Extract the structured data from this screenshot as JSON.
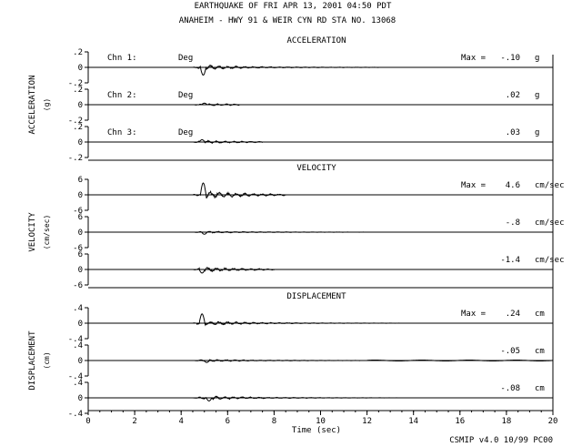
{
  "header": {
    "title": "EARTHQUAKE OF FRI APR 13, 2001   04:50 PDT",
    "station": "ANAHEIM - HWY 91 & WEIR CYN RD    STA NO. 13068"
  },
  "footer": "CSMIP v4.0 10/99  PC00",
  "chart_data": {
    "type": "line",
    "xlabel": "Time (sec)",
    "xlim": [
      0,
      20
    ],
    "x_ticks": [
      "0",
      "2",
      "4",
      "6",
      "8",
      "10",
      "12",
      "14",
      "16",
      "18",
      "20"
    ],
    "panels": [
      {
        "name": "ACCELERATION",
        "ylabel": "ACCELERATION",
        "yunit": "(g)",
        "ylim": [
          -0.2,
          0.2
        ],
        "y_ticks": [
          ".2",
          "0",
          "-.2"
        ],
        "channels": [
          {
            "label": "Chn 1:",
            "orientation": "Deg",
            "max_prefix": "Max =",
            "max": "-.10",
            "unit": "g",
            "peak_time": 4.95,
            "peak": -0.1,
            "amp_early": 0.03,
            "active_end": 12.5
          },
          {
            "label": "Chn 2:",
            "orientation": "Deg",
            "max_prefix": "",
            "max": ".02",
            "unit": "g",
            "peak_time": 5.0,
            "peak": 0.02,
            "amp_early": 0.015,
            "active_end": 6.5
          },
          {
            "label": "Chn 3:",
            "orientation": "Deg",
            "max_prefix": "",
            "max": ".03",
            "unit": "g",
            "peak_time": 4.9,
            "peak": 0.03,
            "amp_early": 0.02,
            "active_end": 7.5
          }
        ]
      },
      {
        "name": "VELOCITY",
        "ylabel": "VELOCITY",
        "yunit": "(cm/sec)",
        "ylim": [
          -6,
          6
        ],
        "y_ticks": [
          "6",
          "0",
          "-6"
        ],
        "channels": [
          {
            "max_prefix": "Max =",
            "max": "4.6",
            "unit": "cm/sec",
            "peak_time": 4.95,
            "peak": 4.6,
            "amp_early": 1.4,
            "active_end": 8.5
          },
          {
            "max_prefix": "",
            "max": "-.8",
            "unit": "cm/sec",
            "peak_time": 5.0,
            "peak": -0.8,
            "amp_early": 0.4,
            "active_end": 16
          },
          {
            "max_prefix": "",
            "max": "-1.4",
            "unit": "cm/sec",
            "peak_time": 4.9,
            "peak": -1.4,
            "amp_early": 0.9,
            "active_end": 8
          }
        ]
      },
      {
        "name": "DISPLACEMENT",
        "ylabel": "DISPLACEMENT",
        "yunit": "(cm)",
        "ylim": [
          -0.4,
          0.4
        ],
        "y_ticks": [
          ".4",
          "0",
          "-.4"
        ],
        "channels": [
          {
            "max_prefix": "Max =",
            "max": ".24",
            "unit": "cm",
            "peak_time": 4.9,
            "peak": 0.24,
            "amp_early": 0.06,
            "active_end": 20
          },
          {
            "max_prefix": "",
            "max": "-.05",
            "unit": "cm",
            "peak_time": 5.1,
            "peak": -0.05,
            "amp_early": 0.03,
            "active_end": 12
          },
          {
            "max_prefix": "",
            "max": "-.08",
            "unit": "cm",
            "peak_time": 5.2,
            "peak": -0.08,
            "amp_early": 0.05,
            "active_end": 20
          }
        ]
      }
    ]
  }
}
